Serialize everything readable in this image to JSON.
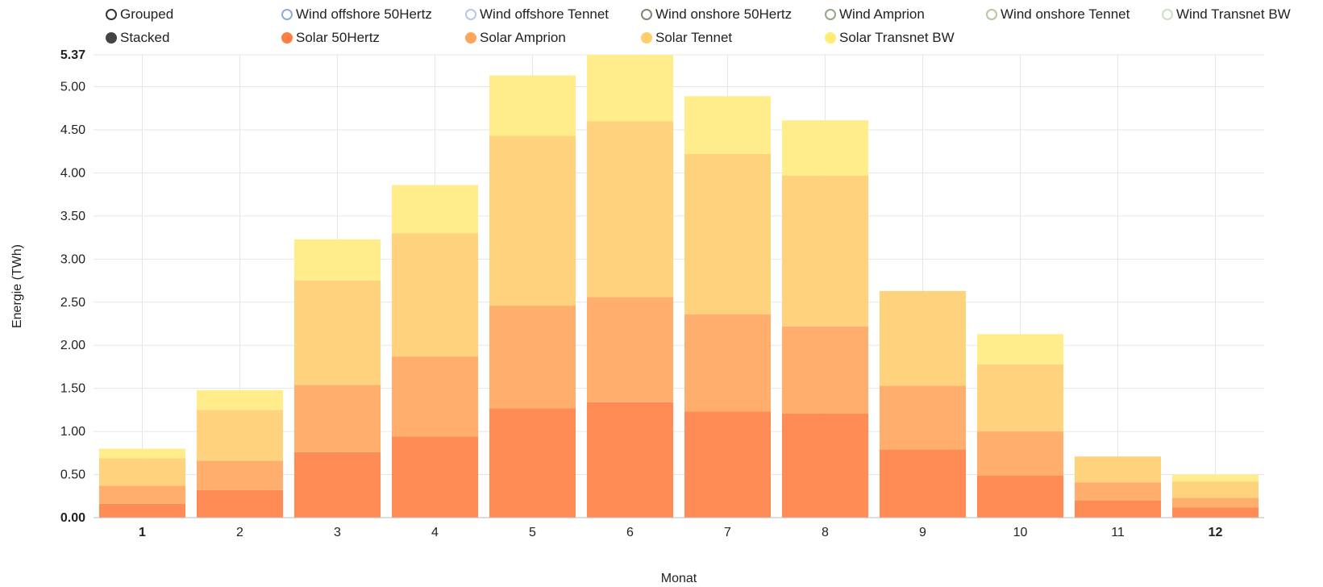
{
  "legend": {
    "row1": [
      {
        "label": "Grouped",
        "style": "ring",
        "color": "#333333",
        "interactive": true
      },
      {
        "label": "Wind offshore 50Hertz",
        "style": "ring",
        "color": "#8fa9d9"
      },
      {
        "label": "Wind offshore Tennet",
        "style": "ring",
        "color": "#b7c8e6"
      },
      {
        "label": "Wind onshore 50Hertz",
        "style": "ring",
        "color": "#7d8a72"
      },
      {
        "label": "Wind Amprion",
        "style": "ring",
        "color": "#95a586"
      },
      {
        "label": "Wind onshore Tennet",
        "style": "ring",
        "color": "#b4c7a6"
      },
      {
        "label": "Wind Transnet BW",
        "style": "ring",
        "color": "#cfe0c5"
      }
    ],
    "row2": [
      {
        "label": "Stacked",
        "style": "filled",
        "color": "#444444"
      },
      {
        "label": "Solar 50Hertz",
        "style": "filled",
        "color": "#ff7f43"
      },
      {
        "label": "Solar Amprion",
        "style": "filled",
        "color": "#ffa559"
      },
      {
        "label": "Solar Tennet",
        "style": "filled",
        "color": "#ffcd6b"
      },
      {
        "label": "Solar Transnet BW",
        "style": "filled",
        "color": "#ffec73"
      }
    ]
  },
  "chart_data": {
    "type": "bar",
    "stacked": true,
    "xlabel": "Monat",
    "ylabel": "Energie (TWh)",
    "ylim": [
      0,
      5.37
    ],
    "yticks": [
      "0.00",
      "0.50",
      "1.00",
      "1.50",
      "2.00",
      "2.50",
      "3.00",
      "3.50",
      "4.00",
      "4.50",
      "5.00"
    ],
    "ymax_label": "5.37",
    "categories": [
      "1",
      "2",
      "3",
      "4",
      "5",
      "6",
      "7",
      "8",
      "9",
      "10",
      "11",
      "12"
    ],
    "bold_categories": [
      "1",
      "12"
    ],
    "grid": true,
    "series": [
      {
        "name": "Solar 50Hertz",
        "color": "#ff8c55",
        "values": [
          0.16,
          0.32,
          0.76,
          0.94,
          1.27,
          1.34,
          1.23,
          1.21,
          0.79,
          0.49,
          0.2,
          0.12
        ]
      },
      {
        "name": "Solar Amprion",
        "color": "#ffae6e",
        "values": [
          0.21,
          0.34,
          0.78,
          0.93,
          1.19,
          1.22,
          1.13,
          1.01,
          0.74,
          0.51,
          0.21,
          0.11
        ]
      },
      {
        "name": "Solar Tennet",
        "color": "#ffd27e",
        "values": [
          0.32,
          0.59,
          1.21,
          1.43,
          1.97,
          2.04,
          1.86,
          1.75,
          1.1,
          0.78,
          0.3,
          0.19
        ]
      },
      {
        "name": "Solar Transnet BW",
        "color": "#ffec8a",
        "values": [
          0.11,
          0.23,
          0.48,
          0.56,
          0.7,
          0.77,
          0.67,
          0.64,
          0.0,
          0.35,
          0.0,
          0.08
        ]
      }
    ]
  }
}
